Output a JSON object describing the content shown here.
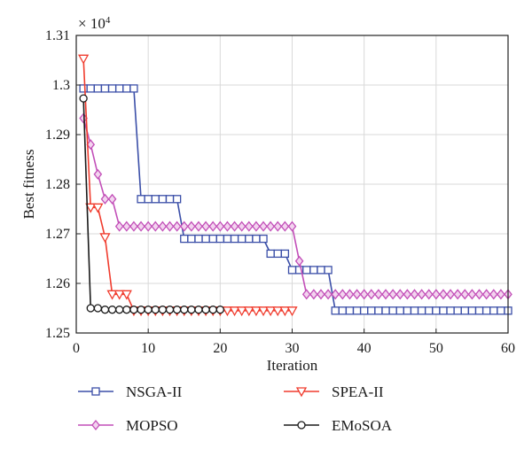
{
  "chart_data": {
    "type": "line",
    "xlabel": "Iteration",
    "ylabel": "Best fitness",
    "y_multiplier": "× 10",
    "y_multiplier_exp": "4",
    "xlim": [
      0,
      60
    ],
    "ylim": [
      1.25,
      1.31
    ],
    "xticks": [
      "0",
      "10",
      "20",
      "30",
      "40",
      "50",
      "60"
    ],
    "yticks": [
      "1.25",
      "1.26",
      "1.27",
      "1.28",
      "1.29",
      "1.3",
      "1.31"
    ],
    "grid": true,
    "legend_position": "bottom",
    "series": [
      {
        "name": "NSGA-II",
        "color": "#3b4fa8",
        "marker": "square",
        "points": [
          [
            1,
            1.2993
          ],
          [
            2,
            1.2993
          ],
          [
            3,
            1.2993
          ],
          [
            4,
            1.2993
          ],
          [
            5,
            1.2993
          ],
          [
            6,
            1.2993
          ],
          [
            7,
            1.2993
          ],
          [
            8,
            1.2993
          ],
          [
            9,
            1.277
          ],
          [
            10,
            1.277
          ],
          [
            11,
            1.277
          ],
          [
            12,
            1.277
          ],
          [
            13,
            1.277
          ],
          [
            14,
            1.277
          ],
          [
            15,
            1.269
          ],
          [
            16,
            1.269
          ],
          [
            17,
            1.269
          ],
          [
            18,
            1.269
          ],
          [
            19,
            1.269
          ],
          [
            20,
            1.269
          ],
          [
            21,
            1.269
          ],
          [
            22,
            1.269
          ],
          [
            23,
            1.269
          ],
          [
            24,
            1.269
          ],
          [
            25,
            1.269
          ],
          [
            26,
            1.269
          ],
          [
            27,
            1.266
          ],
          [
            28,
            1.266
          ],
          [
            29,
            1.266
          ],
          [
            30,
            1.2627
          ],
          [
            31,
            1.2627
          ],
          [
            32,
            1.2627
          ],
          [
            33,
            1.2627
          ],
          [
            34,
            1.2627
          ],
          [
            35,
            1.2627
          ],
          [
            36,
            1.2545
          ],
          [
            37,
            1.2545
          ],
          [
            38,
            1.2545
          ],
          [
            39,
            1.2545
          ],
          [
            40,
            1.2545
          ],
          [
            41,
            1.2545
          ],
          [
            42,
            1.2545
          ],
          [
            43,
            1.2545
          ],
          [
            44,
            1.2545
          ],
          [
            45,
            1.2545
          ],
          [
            46,
            1.2545
          ],
          [
            47,
            1.2545
          ],
          [
            48,
            1.2545
          ],
          [
            49,
            1.2545
          ],
          [
            50,
            1.2545
          ],
          [
            51,
            1.2545
          ],
          [
            52,
            1.2545
          ],
          [
            53,
            1.2545
          ],
          [
            54,
            1.2545
          ],
          [
            55,
            1.2545
          ],
          [
            56,
            1.2545
          ],
          [
            57,
            1.2545
          ],
          [
            58,
            1.2545
          ],
          [
            59,
            1.2545
          ],
          [
            60,
            1.2545
          ]
        ]
      },
      {
        "name": "MOPSO",
        "color": "#c24fb8",
        "marker": "diamond",
        "points": [
          [
            1,
            1.2933
          ],
          [
            2,
            1.288
          ],
          [
            3,
            1.282
          ],
          [
            4,
            1.277
          ],
          [
            5,
            1.277
          ],
          [
            6,
            1.2715
          ],
          [
            7,
            1.2715
          ],
          [
            8,
            1.2715
          ],
          [
            9,
            1.2715
          ],
          [
            10,
            1.2715
          ],
          [
            11,
            1.2715
          ],
          [
            12,
            1.2715
          ],
          [
            13,
            1.2715
          ],
          [
            14,
            1.2715
          ],
          [
            15,
            1.2715
          ],
          [
            16,
            1.2715
          ],
          [
            17,
            1.2715
          ],
          [
            18,
            1.2715
          ],
          [
            19,
            1.2715
          ],
          [
            20,
            1.2715
          ],
          [
            21,
            1.2715
          ],
          [
            22,
            1.2715
          ],
          [
            23,
            1.2715
          ],
          [
            24,
            1.2715
          ],
          [
            25,
            1.2715
          ],
          [
            26,
            1.2715
          ],
          [
            27,
            1.2715
          ],
          [
            28,
            1.2715
          ],
          [
            29,
            1.2715
          ],
          [
            30,
            1.2715
          ],
          [
            31,
            1.2645
          ],
          [
            32,
            1.2578
          ],
          [
            33,
            1.2578
          ],
          [
            34,
            1.2578
          ],
          [
            35,
            1.2578
          ],
          [
            36,
            1.2578
          ],
          [
            37,
            1.2578
          ],
          [
            38,
            1.2578
          ],
          [
            39,
            1.2578
          ],
          [
            40,
            1.2578
          ],
          [
            41,
            1.2578
          ],
          [
            42,
            1.2578
          ],
          [
            43,
            1.2578
          ],
          [
            44,
            1.2578
          ],
          [
            45,
            1.2578
          ],
          [
            46,
            1.2578
          ],
          [
            47,
            1.2578
          ],
          [
            48,
            1.2578
          ],
          [
            49,
            1.2578
          ],
          [
            50,
            1.2578
          ],
          [
            51,
            1.2578
          ],
          [
            52,
            1.2578
          ],
          [
            53,
            1.2578
          ],
          [
            54,
            1.2578
          ],
          [
            55,
            1.2578
          ],
          [
            56,
            1.2578
          ],
          [
            57,
            1.2578
          ],
          [
            58,
            1.2578
          ],
          [
            59,
            1.2578
          ],
          [
            60,
            1.2578
          ]
        ]
      },
      {
        "name": "SPEA-II",
        "color": "#f03c2e",
        "marker": "triangle-down",
        "points": [
          [
            1,
            1.3053
          ],
          [
            2,
            1.2753
          ],
          [
            3,
            1.2753
          ],
          [
            4,
            1.2693
          ],
          [
            5,
            1.2578
          ],
          [
            6,
            1.2578
          ],
          [
            7,
            1.2578
          ],
          [
            8,
            1.2545
          ],
          [
            9,
            1.2545
          ],
          [
            10,
            1.2545
          ],
          [
            11,
            1.2545
          ],
          [
            12,
            1.2545
          ],
          [
            13,
            1.2545
          ],
          [
            14,
            1.2545
          ],
          [
            15,
            1.2545
          ],
          [
            16,
            1.2545
          ],
          [
            17,
            1.2545
          ],
          [
            18,
            1.2545
          ],
          [
            19,
            1.2545
          ],
          [
            20,
            1.2545
          ],
          [
            21,
            1.2545
          ],
          [
            22,
            1.2545
          ],
          [
            23,
            1.2545
          ],
          [
            24,
            1.2545
          ],
          [
            25,
            1.2545
          ],
          [
            26,
            1.2545
          ],
          [
            27,
            1.2545
          ],
          [
            28,
            1.2545
          ],
          [
            29,
            1.2545
          ],
          [
            30,
            1.2545
          ]
        ]
      },
      {
        "name": "EMoSOA",
        "color": "#1a1a1a",
        "marker": "circle",
        "points": [
          [
            1,
            1.2973
          ],
          [
            2,
            1.255
          ],
          [
            3,
            1.255
          ],
          [
            4,
            1.2547
          ],
          [
            5,
            1.2547
          ],
          [
            6,
            1.2547
          ],
          [
            7,
            1.2547
          ],
          [
            8,
            1.2547
          ],
          [
            9,
            1.2547
          ],
          [
            10,
            1.2547
          ],
          [
            11,
            1.2547
          ],
          [
            12,
            1.2547
          ],
          [
            13,
            1.2547
          ],
          [
            14,
            1.2547
          ],
          [
            15,
            1.2547
          ],
          [
            16,
            1.2547
          ],
          [
            17,
            1.2547
          ],
          [
            18,
            1.2547
          ],
          [
            19,
            1.2547
          ],
          [
            20,
            1.2547
          ]
        ]
      }
    ]
  }
}
